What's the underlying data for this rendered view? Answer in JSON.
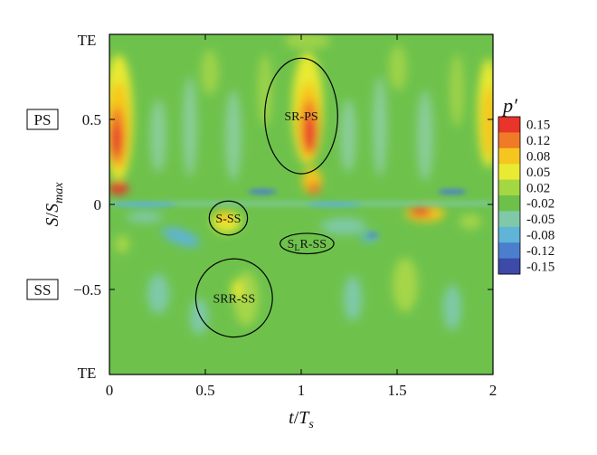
{
  "chart_data": {
    "type": "heatmap",
    "xlabel": {
      "main": "t",
      "sep": "/",
      "sub_main": "T",
      "sub": "s"
    },
    "ylabel": {
      "main": "S",
      "sep": "/",
      "sub_main": "S",
      "sub": "max"
    },
    "xlim": [
      0,
      2
    ],
    "ylim": [
      -1,
      1
    ],
    "x_ticks": [
      {
        "value": 0,
        "label": "0"
      },
      {
        "value": 0.5,
        "label": "0.5"
      },
      {
        "value": 1,
        "label": "1"
      },
      {
        "value": 1.5,
        "label": "1.5"
      },
      {
        "value": 2,
        "label": "2"
      }
    ],
    "y_ticks": [
      {
        "value": 0.5,
        "label": "0.5"
      },
      {
        "value": 0,
        "label": "0"
      },
      {
        "value": -0.5,
        "label": "−0.5"
      }
    ],
    "y_end_labels": {
      "top": "TE",
      "bottom": "TE"
    },
    "side_boxes": [
      {
        "label": "PS",
        "y": 0.5
      },
      {
        "label": "SS",
        "y": -0.5
      }
    ],
    "colorbar": {
      "title": "p′",
      "levels": [
        "0.15",
        "0.12",
        "0.08",
        "0.05",
        "0.02",
        "-0.02",
        "-0.05",
        "-0.08",
        "-0.12",
        "-0.15"
      ],
      "colors": [
        "#e8342a",
        "#f07a27",
        "#f5c61f",
        "#e9ea32",
        "#a4d843",
        "#6dc14b",
        "#7fc9a9",
        "#5fb4d8",
        "#4b7fce",
        "#3d4aa8"
      ]
    },
    "regions": [
      {
        "label": "SR-PS",
        "cx": 1.0,
        "cy": 0.52,
        "rx": 0.19,
        "ry": 0.34
      },
      {
        "label": "S-SS",
        "cx": 0.62,
        "cy": -0.08,
        "rx": 0.1,
        "ry": 0.1
      },
      {
        "label_main": "S",
        "label_sub": "L",
        "label_rest": "R-SS",
        "cx": 1.03,
        "cy": -0.23,
        "rx": 0.14,
        "ry": 0.06
      },
      {
        "label": "SRR-SS",
        "cx": 0.65,
        "cy": -0.55,
        "rx": 0.2,
        "ry": 0.23
      }
    ]
  }
}
